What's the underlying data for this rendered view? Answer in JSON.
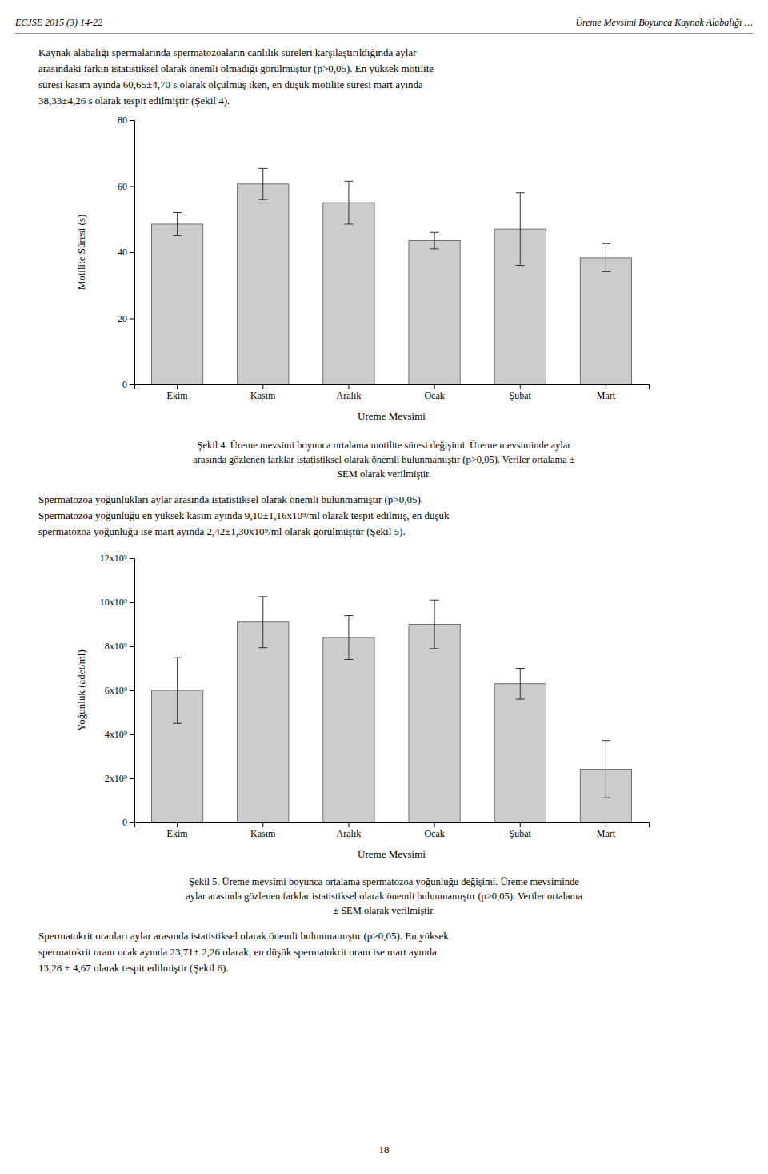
{
  "header_left": "ECJSE 2015 (3) 14-22",
  "header_right": "Üreme Mevsimi Boyunca Kaynak Alabalığı …",
  "intro_lines": [
    "Kaynak alabalığı spermalarında spermatozoaların canlılık süreleri karşılaştırıldığında aylar",
    "arasındaki farkın istatistiksel olarak önemli olmadığı görülmüştür (p>0,05). En yüksek motilite",
    "süresi kasım ayında 60,65±4,70 s olarak ölçülmüş iken, en düşük motilite süresi mart ayında",
    "38,33±4,26 s olarak tespit edilmiştir (Şekil 4)."
  ],
  "caption1_lines": [
    "Şekil 4. Üreme mevsimi boyunca ortalama motilite süresi değişimi. Üreme mevsiminde aylar",
    "arasında gözlenen farklar istatistiksel olarak önemli bulunmamıştır (p>0,05). Veriler ortalama ±",
    "SEM olarak verilmiştir."
  ],
  "mid_lines": [
    "Spermatozoa yoğunlukları aylar arasında istatistiksel olarak önemli bulunmamıştır  (p>0,05).",
    "Spermatozoa yoğunluğu en yüksek kasım ayında 9,10±1,16x10⁹/ml olarak tespit edilmiş, en düşük",
    "spermatozoa yoğunluğu ise mart ayında 2,42±1,30x10⁹/ml olarak görülmüştür (Şekil 5)."
  ],
  "caption2_lines": [
    "Şekil 5. Üreme mevsimi boyunca ortalama spermatozoa yoğunluğu değişimi. Üreme mevsiminde",
    "aylar arasında gözlenen farklar istatistiksel olarak önemli bulunmamıştır (p>0,05). Veriler ortalama",
    "± SEM olarak verilmiştir."
  ],
  "bottom_lines": [
    "Spermatokrit oranları aylar arasında istatistiksel olarak önemli bulunmamıştır (p>0,05).  En yüksek",
    "spermatokrit oranı ocak ayında 23,71± 2,26 olarak; en düşük spermatokrit oranı ise mart ayında",
    "13,28 ± 4,67 olarak tespit edilmiştir (Şekil 6)."
  ],
  "page_number": "18",
  "chart_data": [
    {
      "type": "bar",
      "categories": [
        "Ekim",
        "Kasım",
        "Aralık",
        "Ocak",
        "Şubat",
        "Mart"
      ],
      "values": [
        48.5,
        60.65,
        55.0,
        43.5,
        47.0,
        38.33
      ],
      "errors": [
        3.5,
        4.7,
        6.5,
        2.5,
        11.0,
        4.26
      ],
      "ylabel": "Motilite Süresi (s)",
      "xlabel": "Üreme Mevsimi",
      "ylim": [
        0,
        80
      ],
      "yticks": [
        0,
        20,
        40,
        60,
        80
      ],
      "color": "#cccccc",
      "grid": false
    },
    {
      "type": "bar",
      "categories": [
        "Ekim",
        "Kasım",
        "Aralık",
        "Ocak",
        "Şubat",
        "Mart"
      ],
      "values": [
        6.0,
        9.1,
        8.4,
        9.0,
        6.3,
        2.42
      ],
      "errors": [
        1.5,
        1.16,
        1.0,
        1.1,
        0.7,
        1.3
      ],
      "ylabel": "Yoğunluk (adet/ml)",
      "xlabel": "Üreme Mevsimi",
      "ylim": [
        0,
        12
      ],
      "yticks": [
        0,
        {
          "value": 2,
          "label": "2x10⁹"
        },
        {
          "value": 4,
          "label": "4x10⁹"
        },
        {
          "value": 6,
          "label": "6x10⁹"
        },
        {
          "value": 8,
          "label": "8x10⁹"
        },
        {
          "value": 10,
          "label": "10x10⁹"
        },
        {
          "value": 12,
          "label": "12x10⁹"
        }
      ],
      "color": "#cccccc",
      "grid": false
    }
  ]
}
